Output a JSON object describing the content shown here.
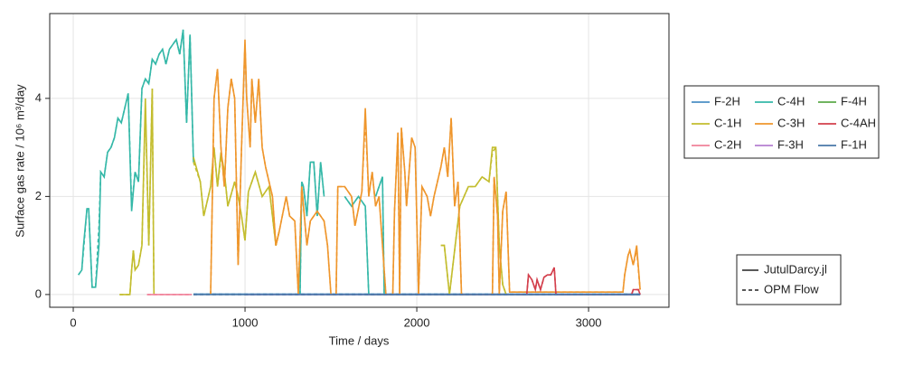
{
  "chart_data": {
    "type": "line",
    "x_label": "Time / days",
    "y_label": "Surface gas rate / 10⁶ m³/day",
    "xlim": [
      -137,
      3468
    ],
    "xticks": [
      0,
      1000,
      2000,
      3000
    ],
    "ylim": [
      -0.26,
      5.73
    ],
    "yticks": [
      0,
      2,
      4
    ],
    "grid": true,
    "line_styles": [
      {
        "name": "JutulDarcy.jl",
        "dash": "solid"
      },
      {
        "name": "OPM Flow",
        "dash": "dashed"
      }
    ],
    "series": [
      {
        "name": "F-2H",
        "color": "#4b8fc4",
        "x": [
          700,
          3300
        ],
        "values": [
          0.01,
          0.01
        ],
        "opm_values": [
          0.01,
          0.01
        ]
      },
      {
        "name": "C-4H",
        "color": "#35b8a8",
        "x": [
          30,
          50,
          60,
          80,
          90,
          110,
          130,
          150,
          160,
          180,
          200,
          220,
          240,
          260,
          280,
          300,
          320,
          340,
          360,
          380,
          400,
          420,
          440,
          460,
          480,
          500,
          520,
          540,
          560,
          580,
          600,
          620,
          640,
          660,
          680,
          700,
          710,
          1320,
          1330,
          1340,
          1360,
          1380,
          1400,
          1420,
          1440,
          1460,
          1470,
          1580,
          1620,
          1660,
          1700,
          1720,
          1730,
          1760,
          1800,
          1810
        ],
        "values": [
          0.4,
          0.5,
          1.0,
          1.75,
          1.75,
          0.15,
          0.15,
          1.0,
          2.5,
          2.4,
          2.9,
          3.0,
          3.2,
          3.6,
          3.5,
          3.8,
          4.1,
          1.7,
          2.5,
          2.3,
          4.2,
          4.4,
          4.3,
          4.8,
          4.7,
          4.9,
          5.0,
          4.7,
          5.0,
          5.1,
          5.2,
          4.9,
          5.4,
          3.5,
          5.3,
          2.7,
          null,
          0,
          2.3,
          2.2,
          1.6,
          2.7,
          2.7,
          1.6,
          2.7,
          2.0,
          null,
          2.0,
          1.8,
          2.0,
          1.8,
          0,
          null,
          2.0,
          2.4,
          0
        ],
        "opm_values": [
          0.4,
          0.5,
          0.9,
          1.75,
          1.75,
          0.15,
          0.15,
          1.4,
          2.5,
          2.4,
          2.9,
          3.0,
          3.2,
          3.6,
          3.5,
          3.8,
          4.1,
          1.8,
          2.5,
          2.3,
          4.2,
          4.4,
          4.3,
          4.8,
          4.7,
          4.9,
          5.0,
          4.7,
          5.0,
          5.1,
          5.2,
          4.9,
          5.4,
          3.5,
          5.3,
          2.7,
          null,
          0,
          2.3,
          2.2,
          1.6,
          2.7,
          2.7,
          1.6,
          2.7,
          2.0,
          null,
          2.0,
          1.8,
          2.0,
          1.8,
          0,
          null,
          2.0,
          2.4,
          0
        ]
      },
      {
        "name": "F-4H",
        "color": "#5caa4a",
        "x": [
          1700,
          3300
        ],
        "values": [
          0,
          0
        ],
        "opm_values": [
          0,
          0
        ]
      },
      {
        "name": "C-1H",
        "color": "#c3bd2e",
        "x": [
          270,
          330,
          340,
          350,
          360,
          380,
          400,
          420,
          440,
          460,
          470,
          600,
          700,
          740,
          760,
          800,
          820,
          840,
          860,
          880,
          900,
          940,
          960,
          980,
          1000,
          1020,
          1060,
          1100,
          1140,
          1180,
          1200,
          1500,
          2140,
          2160,
          2190,
          2250,
          2300,
          2340,
          2380,
          2420,
          2440,
          2460,
          2480,
          2500,
          2520
        ],
        "values": [
          0,
          0,
          0.5,
          0.9,
          0.5,
          0.6,
          1.0,
          4.0,
          1.0,
          4.2,
          0,
          null,
          2.8,
          2.3,
          1.6,
          2.2,
          3.0,
          2.2,
          2.9,
          2.5,
          1.8,
          2.3,
          2.0,
          1.6,
          1.1,
          2.1,
          2.5,
          2.0,
          2.2,
          1.0,
          1.3,
          null,
          1.0,
          1.0,
          0,
          1.8,
          2.2,
          2.2,
          2.4,
          2.3,
          3.0,
          3.0,
          1.0,
          0.2,
          0
        ],
        "opm_values": [
          0,
          0,
          0.5,
          0.9,
          0.5,
          0.6,
          1.0,
          3.8,
          1.0,
          4.2,
          0,
          null,
          2.7,
          2.3,
          1.6,
          2.2,
          3.0,
          2.2,
          2.8,
          2.5,
          1.8,
          2.3,
          2.0,
          1.6,
          1.1,
          2.1,
          2.5,
          2.0,
          2.2,
          1.0,
          1.3,
          null,
          1.0,
          1.0,
          0,
          1.8,
          2.2,
          2.2,
          2.4,
          2.3,
          2.9,
          3.0,
          1.0,
          0.2,
          0
        ]
      },
      {
        "name": "C-3H",
        "color": "#ef962c",
        "x": [
          800,
          820,
          840,
          860,
          880,
          900,
          920,
          940,
          960,
          980,
          1000,
          1010,
          1030,
          1040,
          1060,
          1080,
          1100,
          1120,
          1160,
          1180,
          1200,
          1240,
          1260,
          1290,
          1310,
          1330,
          1360,
          1380,
          1420,
          1460,
          1480,
          1500,
          1530,
          1540,
          1580,
          1620,
          1640,
          1680,
          1700,
          1720,
          1740,
          1760,
          1780,
          1820,
          1860,
          1870,
          1890,
          1900,
          1910,
          1930,
          1940,
          1970,
          1990,
          2010,
          2030,
          2060,
          2080,
          2100,
          2140,
          2160,
          2180,
          2200,
          2220,
          2240,
          2260,
          2440,
          2450,
          2470,
          2480,
          2500,
          2520,
          2540,
          3200,
          3210,
          3230,
          3240,
          3260,
          3280,
          3300
        ],
        "values": [
          0,
          4.0,
          4.6,
          3.0,
          2.2,
          3.8,
          4.4,
          4.0,
          0.6,
          3.0,
          5.2,
          4.0,
          3.0,
          4.4,
          3.5,
          4.4,
          3.0,
          2.6,
          2.0,
          1.0,
          1.3,
          2.0,
          1.6,
          1.5,
          0,
          2.2,
          1.0,
          1.5,
          1.7,
          1.5,
          1.0,
          0,
          0,
          2.2,
          2.2,
          2.0,
          1.4,
          2.1,
          3.8,
          2.0,
          2.5,
          1.8,
          2.0,
          0,
          0,
          1.7,
          3.3,
          0,
          3.4,
          2.5,
          1.8,
          3.2,
          3.0,
          0,
          2.2,
          2.0,
          1.6,
          2.0,
          2.6,
          3.0,
          2.4,
          3.6,
          1.8,
          2.3,
          0,
          0,
          2.4,
          1.6,
          0,
          1.7,
          2.1,
          0.05,
          0.05,
          0.4,
          0.8,
          0.9,
          0.6,
          1.0,
          0.1
        ],
        "opm_values": [
          0,
          4.0,
          4.6,
          3.0,
          2.2,
          3.8,
          4.4,
          4.0,
          0.6,
          3.0,
          5.1,
          4.0,
          3.0,
          4.4,
          3.5,
          4.4,
          3.0,
          2.6,
          2.0,
          1.0,
          1.3,
          2.0,
          1.6,
          1.5,
          0,
          2.2,
          1.0,
          1.5,
          1.7,
          1.5,
          1.0,
          0,
          0,
          2.2,
          2.2,
          2.0,
          1.4,
          2.1,
          3.6,
          2.0,
          2.5,
          1.8,
          2.0,
          0,
          0,
          1.7,
          3.3,
          0,
          3.4,
          2.5,
          1.8,
          3.2,
          3.0,
          0,
          2.2,
          2.0,
          1.6,
          2.0,
          2.6,
          3.0,
          2.4,
          3.6,
          1.8,
          2.3,
          0,
          0,
          2.4,
          1.6,
          0,
          1.7,
          2.1,
          0.05,
          0.05,
          0.4,
          0.8,
          0.9,
          0.6,
          0.9,
          0.1
        ]
      },
      {
        "name": "C-4AH",
        "color": "#d33f4c",
        "x": [
          2600,
          2640,
          2650,
          2670,
          2690,
          2700,
          2720,
          2740,
          2760,
          2780,
          2800,
          2810,
          3250,
          3260,
          3290,
          3300
        ],
        "values": [
          0,
          0,
          0.4,
          0.3,
          0.1,
          0.3,
          0.1,
          0.35,
          0.4,
          0.4,
          0.55,
          0,
          0,
          0.1,
          0.1,
          0
        ],
        "opm_values": [
          0,
          0,
          0.4,
          0.3,
          0.1,
          0.3,
          0.1,
          0.35,
          0.4,
          0.4,
          0.55,
          0,
          0,
          0.1,
          0.1,
          0
        ]
      },
      {
        "name": "C-2H",
        "color": "#f1829a",
        "x": [
          430,
          690
        ],
        "values": [
          0,
          0
        ],
        "opm_values": [
          0,
          0
        ]
      },
      {
        "name": "F-3H",
        "color": "#b57fd0",
        "x": [
          1000,
          3300
        ],
        "values": [
          0,
          0
        ],
        "opm_values": [
          0,
          0
        ]
      },
      {
        "name": "F-1H",
        "color": "#4a78a8",
        "x": [
          700,
          3300
        ],
        "values": [
          0,
          0
        ],
        "opm_values": [
          0,
          0
        ]
      }
    ]
  }
}
